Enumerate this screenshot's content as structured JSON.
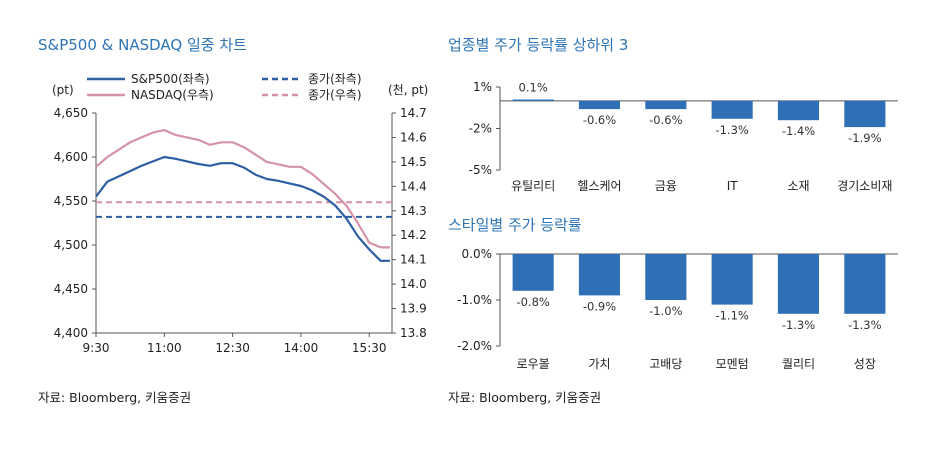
{
  "left_panel": {
    "title": "S&P500 & NASDAQ 일중 차트",
    "source": "자료: Bloomberg, 키움증권"
  },
  "right_top": {
    "title": "업종별 주가 등락률 상하위 3"
  },
  "right_bottom": {
    "title": "스타일별 주가 등락률",
    "source": "자료: Bloomberg, 키움증권"
  },
  "colors": {
    "title": "#2e75b6",
    "sp500": "#2e5fa3",
    "nasdaq": "#d493a8",
    "bar": "#2e6fb6"
  },
  "chart_data": [
    {
      "type": "line",
      "left_unit": "(pt)",
      "right_unit": "(천, pt)",
      "x_ticks": [
        "9:30",
        "11:00",
        "12:30",
        "14:00",
        "15:30"
      ],
      "y_left_ticks": [
        "4,650",
        "4,600",
        "4,550",
        "4,500",
        "4,450",
        "4,400"
      ],
      "y_right_ticks": [
        "14.7",
        "14.6",
        "14.5",
        "14.4",
        "14.3",
        "14.2",
        "14.1",
        "14.0",
        "13.9",
        "13.8"
      ],
      "ylim_left": [
        4400,
        4650
      ],
      "ylim_right": [
        13.8,
        14.7
      ],
      "legend": {
        "sp500": "S&P500(좌측)",
        "nasdaq": "NASDAQ(우측)",
        "close_left": "종가(좌측)",
        "close_right": "종가(우측)"
      },
      "series": [
        {
          "name": "S&P500(좌측)",
          "axis": "left",
          "x": [
            "9:30",
            "9:45",
            "10:00",
            "10:15",
            "10:30",
            "10:45",
            "11:00",
            "11:15",
            "11:30",
            "11:45",
            "12:00",
            "12:15",
            "12:30",
            "12:45",
            "13:00",
            "13:15",
            "13:30",
            "13:45",
            "14:00",
            "14:15",
            "14:30",
            "14:45",
            "15:00",
            "15:15",
            "15:30",
            "15:45",
            "16:00"
          ],
          "values": [
            4555,
            4572,
            4578,
            4584,
            4590,
            4595,
            4600,
            4598,
            4595,
            4592,
            4590,
            4593,
            4593,
            4588,
            4580,
            4575,
            4573,
            4570,
            4567,
            4562,
            4555,
            4545,
            4530,
            4510,
            4495,
            4482,
            4482
          ]
        },
        {
          "name": "NASDAQ(우측)",
          "axis": "right",
          "x": [
            "9:30",
            "9:45",
            "10:00",
            "10:15",
            "10:30",
            "10:45",
            "11:00",
            "11:15",
            "11:30",
            "11:45",
            "12:00",
            "12:15",
            "12:30",
            "12:45",
            "13:00",
            "13:15",
            "13:30",
            "13:45",
            "14:00",
            "14:15",
            "14:30",
            "14:45",
            "15:00",
            "15:15",
            "15:30",
            "15:45",
            "16:00"
          ],
          "values": [
            14.48,
            14.52,
            14.55,
            14.58,
            14.6,
            14.62,
            14.63,
            14.61,
            14.6,
            14.59,
            14.57,
            14.58,
            14.58,
            14.56,
            14.53,
            14.5,
            14.49,
            14.48,
            14.48,
            14.45,
            14.41,
            14.37,
            14.32,
            14.25,
            14.17,
            14.15,
            14.15
          ]
        },
        {
          "name": "종가(좌측)",
          "axis": "left",
          "style": "dashed",
          "values": [
            4532
          ]
        },
        {
          "name": "종가(우측)",
          "axis": "right",
          "style": "dashed",
          "values": [
            14.335
          ]
        }
      ]
    },
    {
      "type": "bar",
      "categories": [
        "유틸리티",
        "헬스케어",
        "금융",
        "IT",
        "소재",
        "경기소비재"
      ],
      "values": [
        0.1,
        -0.6,
        -0.6,
        -1.3,
        -1.4,
        -1.9
      ],
      "value_labels": [
        "0.1%",
        "-0.6%",
        "-0.6%",
        "-1.3%",
        "-1.4%",
        "-1.9%"
      ],
      "y_ticks": [
        "1%",
        "-2%",
        "-5%"
      ],
      "y_tick_values": [
        1,
        -2,
        -5
      ],
      "ylim": [
        -5,
        1
      ]
    },
    {
      "type": "bar",
      "categories": [
        "로우볼",
        "가치",
        "고배당",
        "모멘텀",
        "퀄리티",
        "성장"
      ],
      "values": [
        -0.8,
        -0.9,
        -1.0,
        -1.1,
        -1.3,
        -1.3
      ],
      "value_labels": [
        "-0.8%",
        "-0.9%",
        "-1.0%",
        "-1.1%",
        "-1.3%",
        "-1.3%"
      ],
      "y_ticks": [
        "0.0%",
        "-1.0%",
        "-2.0%"
      ],
      "y_tick_values": [
        0,
        -1,
        -2
      ],
      "ylim": [
        -2,
        0
      ]
    }
  ]
}
